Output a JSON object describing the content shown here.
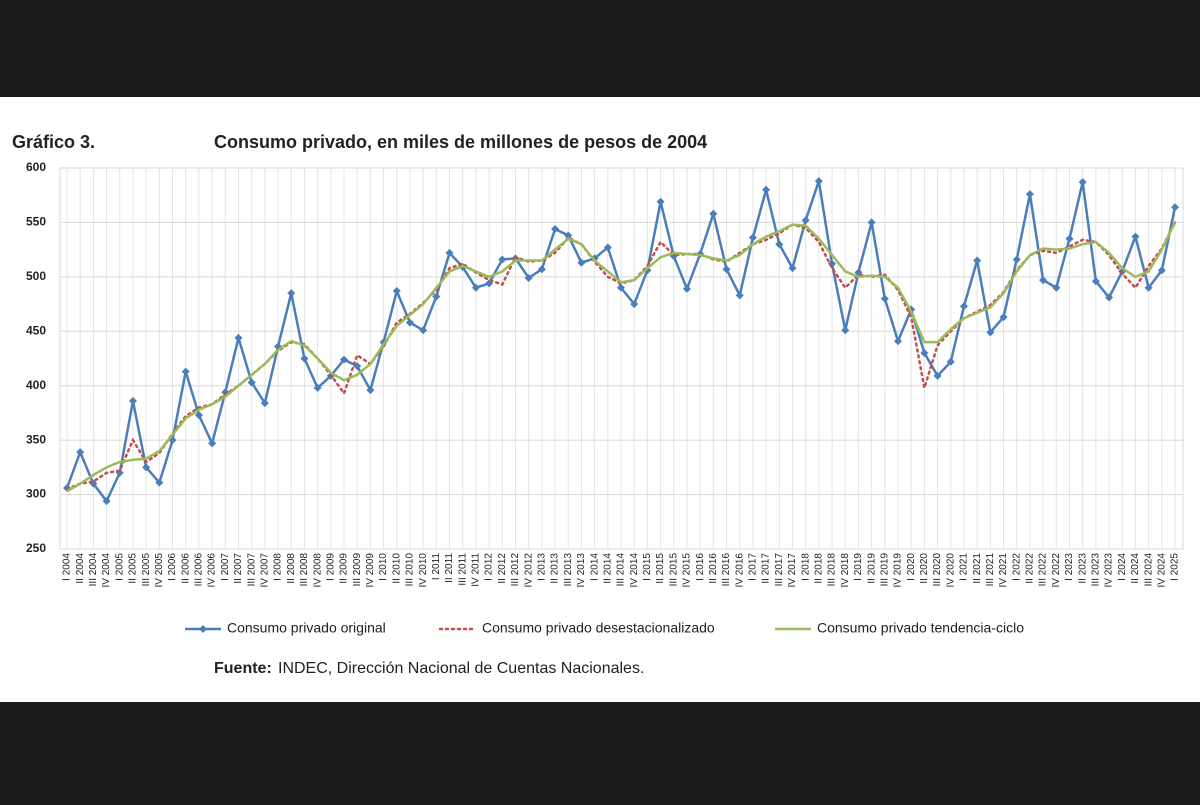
{
  "chart_data": {
    "type": "line",
    "label": "Gráfico 3.",
    "title": "Consumo privado, en miles de millones de pesos de 2004",
    "source_label": "Fuente:",
    "source": "INDEC, Dirección Nacional de Cuentas Nacionales.",
    "categories": [
      "I 2004",
      "II 2004",
      "III 2004",
      "IV 2004",
      "I 2005",
      "II 2005",
      "III 2005",
      "IV 2005",
      "I 2006",
      "II 2006",
      "III 2006",
      "IV 2006",
      "I 2007",
      "II 2007",
      "III 2007",
      "IV 2007",
      "I 2008",
      "II 2008",
      "III 2008",
      "IV 2008",
      "I 2009",
      "II 2009",
      "III 2009",
      "IV 2009",
      "I 2010",
      "II 2010",
      "III 2010",
      "IV 2010",
      "I 2011",
      "II 2011",
      "III 2011",
      "IV 2011",
      "I 2012",
      "II 2012",
      "III 2012",
      "IV 2012",
      "I 2013",
      "II 2013",
      "III 2013",
      "IV 2013",
      "I 2014",
      "II 2014",
      "III 2014",
      "IV 2014",
      "I 2015",
      "II 2015",
      "III 2015",
      "IV 2015",
      "I 2016",
      "II 2016",
      "III 2016",
      "IV 2016",
      "I 2017",
      "II 2017",
      "III 2017",
      "IV 2017",
      "I 2018",
      "II 2018",
      "III 2018",
      "IV 2018",
      "I 2019",
      "II 2019",
      "III 2019",
      "IV 2019",
      "I 2020",
      "II 2020",
      "III 2020",
      "IV 2020",
      "I 2021",
      "II 2021",
      "III 2021",
      "IV 2021",
      "I 2022",
      "II 2022",
      "III 2022",
      "IV 2022",
      "I 2023",
      "II 2023",
      "III 2023",
      "IV 2023",
      "I 2024",
      "II 2024",
      "III 2024",
      "IV 2024",
      "I 2025"
    ],
    "series": [
      {
        "name": "Consumo privado original",
        "color": "#4a7ebb",
        "style": "marker",
        "values": [
          306,
          339,
          310,
          294,
          320,
          386,
          325,
          311,
          350,
          413,
          373,
          347,
          394,
          444,
          403,
          384,
          436,
          485,
          425,
          398,
          409,
          424,
          418,
          396,
          440,
          487,
          458,
          451,
          482,
          522,
          509,
          490,
          494,
          516,
          517,
          499,
          507,
          544,
          538,
          513,
          517,
          527,
          490,
          475,
          506,
          569,
          519,
          489,
          521,
          558,
          507,
          483,
          536,
          580,
          530,
          508,
          552,
          588,
          512,
          451,
          504,
          550,
          480,
          441,
          470,
          430,
          409,
          422,
          473,
          515,
          449,
          463,
          516,
          576,
          497,
          490,
          535,
          587,
          496,
          481,
          505,
          537,
          490,
          506,
          564
        ]
      },
      {
        "name": "Consumo privado desestacionalizado",
        "color": "#c0504d",
        "style": "dotted",
        "values": [
          305,
          310,
          312,
          320,
          322,
          350,
          330,
          338,
          356,
          372,
          380,
          383,
          392,
          400,
          410,
          420,
          432,
          440,
          438,
          425,
          410,
          393,
          428,
          420,
          436,
          458,
          466,
          476,
          488,
          508,
          512,
          504,
          497,
          493,
          518,
          514,
          515,
          522,
          536,
          530,
          514,
          500,
          494,
          497,
          510,
          532,
          520,
          521,
          521,
          516,
          514,
          522,
          530,
          534,
          540,
          548,
          545,
          532,
          508,
          490,
          502,
          500,
          502,
          488,
          463,
          398,
          437,
          450,
          462,
          468,
          474,
          486,
          506,
          520,
          524,
          522,
          528,
          534,
          532,
          520,
          503,
          490,
          510,
          526,
          550
        ]
      },
      {
        "name": "Consumo privado tendencia-ciclo",
        "color": "#9bbb59",
        "style": "solid",
        "values": [
          303,
          310,
          318,
          325,
          330,
          332,
          333,
          340,
          355,
          370,
          378,
          383,
          390,
          400,
          410,
          420,
          433,
          441,
          437,
          425,
          412,
          405,
          410,
          420,
          438,
          455,
          465,
          475,
          490,
          505,
          510,
          505,
          500,
          505,
          515,
          515,
          515,
          525,
          535,
          530,
          515,
          505,
          495,
          497,
          508,
          518,
          522,
          521,
          520,
          517,
          515,
          520,
          530,
          537,
          542,
          548,
          547,
          535,
          520,
          505,
          500,
          501,
          500,
          490,
          468,
          440,
          440,
          452,
          462,
          467,
          472,
          485,
          505,
          520,
          526,
          525,
          526,
          530,
          532,
          522,
          508,
          500,
          505,
          525,
          550
        ]
      }
    ],
    "ylim": [
      250,
      600
    ],
    "yticks": [
      250,
      300,
      350,
      400,
      450,
      500,
      550,
      600
    ],
    "grid": true
  }
}
